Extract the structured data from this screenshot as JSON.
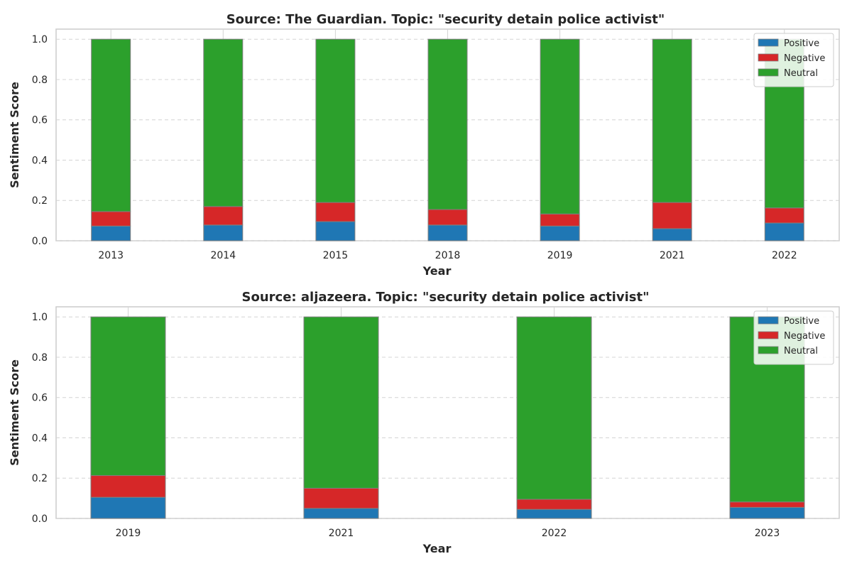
{
  "chart_data": [
    {
      "type": "bar",
      "stacked": true,
      "title": "Source: The Guardian. Topic: \"security detain police activist\"",
      "xlabel": "Year",
      "ylabel": "Sentiment Score",
      "ylim": [
        0,
        1.05
      ],
      "yticks": [
        "0.0",
        "0.2",
        "0.4",
        "0.6",
        "0.8",
        "1.0"
      ],
      "grid": true,
      "legend_position": "top-right",
      "categories": [
        "2013",
        "2014",
        "2015",
        "2018",
        "2019",
        "2021",
        "2022"
      ],
      "series": [
        {
          "name": "Positive",
          "color": "#1f77b4",
          "values": [
            0.073,
            0.078,
            0.095,
            0.078,
            0.073,
            0.06,
            0.088
          ]
        },
        {
          "name": "Negative",
          "color": "#d62728",
          "values": [
            0.072,
            0.092,
            0.095,
            0.077,
            0.06,
            0.13,
            0.075
          ]
        },
        {
          "name": "Neutral",
          "color": "#2ca02c",
          "values": [
            0.855,
            0.83,
            0.81,
            0.845,
            0.867,
            0.81,
            0.837
          ]
        }
      ]
    },
    {
      "type": "bar",
      "stacked": true,
      "title": "Source: aljazeera. Topic: \"security detain police activist\"",
      "xlabel": "Year",
      "ylabel": "Sentiment Score",
      "ylim": [
        0,
        1.05
      ],
      "yticks": [
        "0.0",
        "0.2",
        "0.4",
        "0.6",
        "0.8",
        "1.0"
      ],
      "grid": true,
      "legend_position": "top-right",
      "categories": [
        "2019",
        "2021",
        "2022",
        "2023"
      ],
      "series": [
        {
          "name": "Positive",
          "color": "#1f77b4",
          "values": [
            0.105,
            0.05,
            0.045,
            0.055
          ]
        },
        {
          "name": "Negative",
          "color": "#d62728",
          "values": [
            0.108,
            0.1,
            0.05,
            0.027
          ]
        },
        {
          "name": "Neutral",
          "color": "#2ca02c",
          "values": [
            0.787,
            0.85,
            0.905,
            0.918
          ]
        }
      ]
    }
  ]
}
